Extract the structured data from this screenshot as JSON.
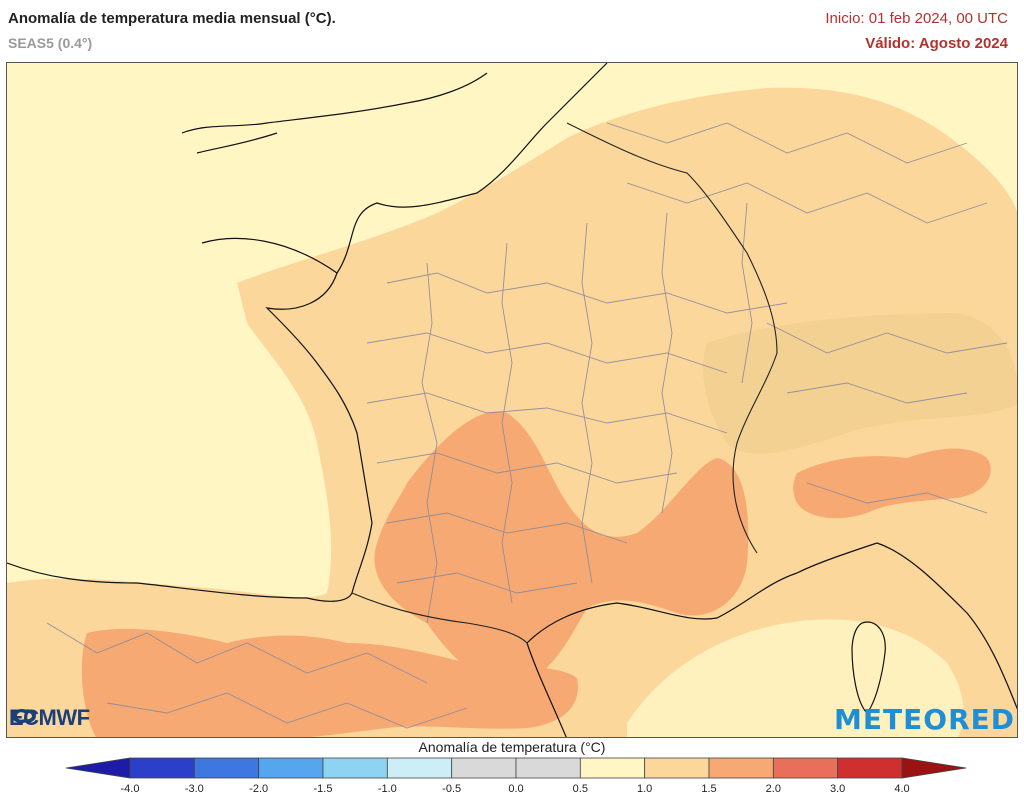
{
  "header": {
    "title": "Anomalía de temperatura media mensual (°C).",
    "model": "SEAS5 (0.4°)",
    "init": "Inicio: 01 feb 2024, 00 UTC",
    "valid": "Válido: Agosto 2024"
  },
  "colorbar": {
    "title": "Anomalía de temperatura (°C)",
    "ticks": [
      "-4.0",
      "-3.0",
      "-2.0",
      "-1.5",
      "-1.0",
      "-0.5",
      "0.0",
      "0.5",
      "1.0",
      "1.5",
      "2.0",
      "3.0",
      "4.0"
    ],
    "colors": [
      "#2b3fc8",
      "#3f77e0",
      "#55a6ee",
      "#8fd3f3",
      "#cdeef6",
      "#d9d9d9",
      "#d9d9d9",
      "#fff6c4",
      "#fbd79c",
      "#f6a973",
      "#e8705a",
      "#cf2f2f"
    ],
    "under_color": "#1c1ca8",
    "over_color": "#9a1212"
  },
  "logos": {
    "left": "ECMWF",
    "right": "METEORED"
  },
  "map_colors": {
    "background": "#fff6c4",
    "anomaly_1_0_1_5": "#fbd79c",
    "anomaly_1_5_2_0": "#f6a973",
    "sea": "#fff6c4",
    "coastline": "#111111",
    "borders": "#8a8a9a"
  }
}
